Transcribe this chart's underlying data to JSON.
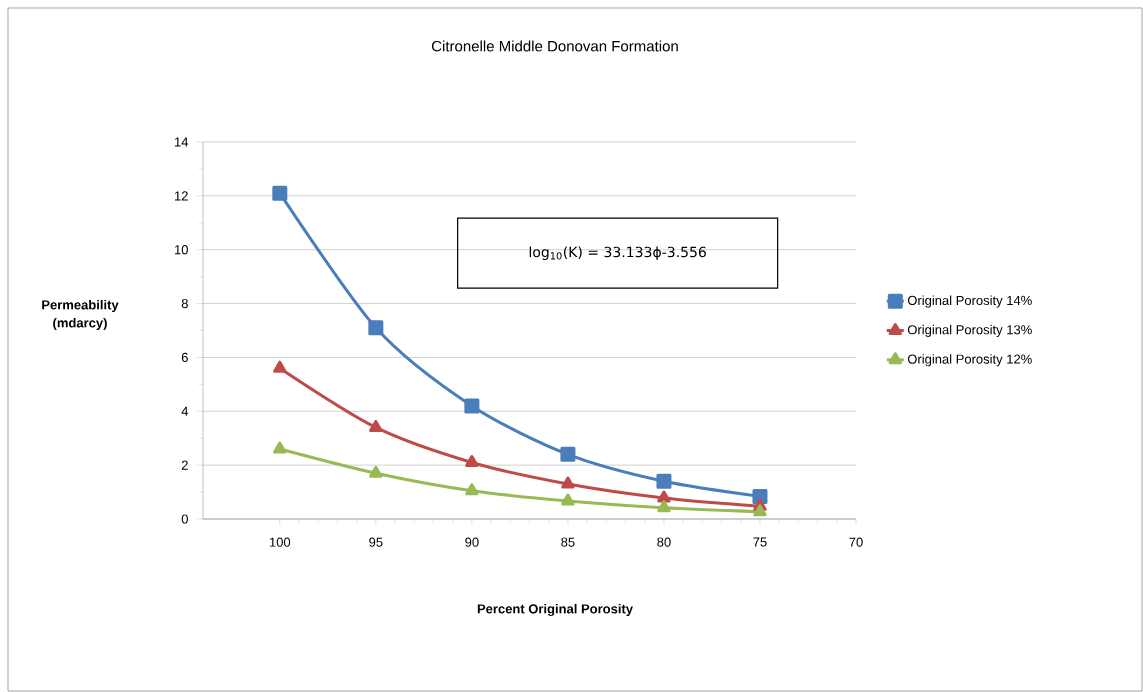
{
  "chart_data": {
    "type": "line",
    "title": "Citronelle Middle Donovan Formation",
    "xlabel": "Percent Original Porosity",
    "ylabel": "Permeability (mdarcy)",
    "x": [
      100,
      95,
      90,
      85,
      80,
      75
    ],
    "series": [
      {
        "name": "Original Porosity 14%",
        "color": "#4a7ebb",
        "marker": "square",
        "values": [
          12.1,
          7.1,
          4.2,
          2.4,
          1.4,
          0.84
        ]
      },
      {
        "name": "Original Porosity 13%",
        "color": "#be4b48",
        "marker": "triangle",
        "values": [
          5.6,
          3.4,
          2.1,
          1.3,
          0.78,
          0.47
        ]
      },
      {
        "name": "Original Porosity 12%",
        "color": "#98b954",
        "marker": "triangle",
        "values": [
          2.6,
          1.7,
          1.05,
          0.67,
          0.42,
          0.27
        ]
      }
    ],
    "xlim": [
      104,
      70
    ],
    "xticks": [
      100,
      95,
      90,
      85,
      80,
      75,
      70
    ],
    "ylim": [
      0,
      14
    ],
    "yticks": [
      0,
      2,
      4,
      6,
      8,
      10,
      12,
      14
    ],
    "grid": "y",
    "legend": "right",
    "line_style": "solid",
    "annotations": [
      "log$_{10}$(K) = 33.133ϕ-3.556"
    ]
  }
}
